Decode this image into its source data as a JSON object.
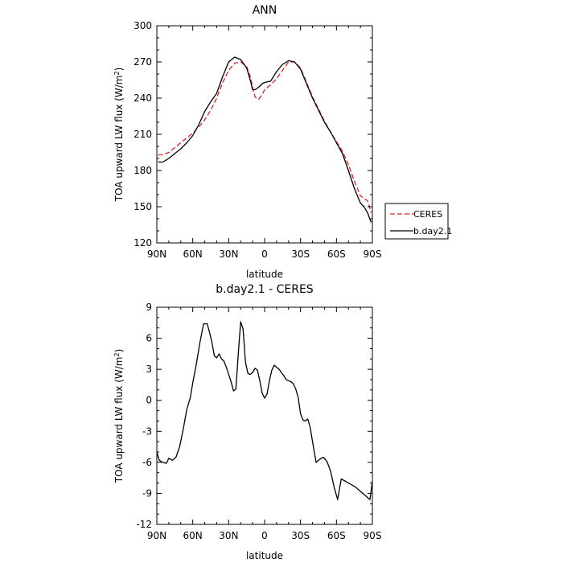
{
  "chart_data": [
    {
      "type": "line",
      "title": "ANN",
      "xlabel": "latitude",
      "ylabel": "TOA upward LW flux (W/m",
      "ylabel_sup": "2",
      "ylabel_tail": ")",
      "xlim": [
        90,
        -90
      ],
      "ylim": [
        120,
        300
      ],
      "x_ticks": [
        90,
        60,
        30,
        0,
        -30,
        -60,
        -90
      ],
      "x_tick_labels": [
        "90N",
        "60N",
        "30N",
        "0",
        "30S",
        "60S",
        "90S"
      ],
      "y_ticks": [
        120,
        150,
        180,
        210,
        240,
        270,
        300
      ],
      "y_tick_labels": [
        "120",
        "150",
        "180",
        "210",
        "240",
        "270",
        "300"
      ],
      "legend": {
        "placement": "outside-right",
        "entries": [
          "CERES",
          "b.day2.1"
        ]
      },
      "series": [
        {
          "name": "CERES",
          "color": "#e02020",
          "dash": "dashed",
          "x": [
            89,
            85,
            80,
            75,
            70,
            65,
            60,
            55,
            50,
            45,
            40,
            35,
            30,
            25,
            20,
            15,
            12,
            10,
            8,
            5,
            2,
            0,
            -5,
            -10,
            -15,
            -20,
            -25,
            -30,
            -35,
            -40,
            -45,
            -50,
            -55,
            -60,
            -65,
            -70,
            -75,
            -80,
            -83,
            -86,
            -89
          ],
          "values": [
            193,
            193,
            195,
            199,
            203,
            207,
            211,
            216,
            222,
            230,
            240,
            253,
            263,
            269,
            270,
            266,
            258,
            249,
            241,
            239,
            243,
            247,
            251,
            256,
            263,
            270,
            270,
            265,
            253,
            241,
            231,
            221,
            212,
            204,
            196,
            185,
            171,
            159,
            157,
            155,
            145
          ]
        },
        {
          "name": "b.day2.1",
          "color": "#000000",
          "dash": "solid",
          "x": [
            89,
            85,
            80,
            75,
            70,
            65,
            60,
            55,
            50,
            45,
            40,
            35,
            30,
            25,
            20,
            15,
            12,
            10,
            8,
            5,
            2,
            0,
            -5,
            -10,
            -15,
            -20,
            -25,
            -30,
            -35,
            -40,
            -45,
            -50,
            -55,
            -60,
            -65,
            -70,
            -75,
            -80,
            -83,
            -86,
            -89
          ],
          "values": [
            187,
            187,
            190,
            194,
            198,
            203,
            209,
            218,
            229,
            237,
            244,
            258,
            270,
            274,
            272,
            265,
            255,
            247,
            247,
            249,
            252,
            253,
            254,
            262,
            268,
            271,
            270,
            264,
            252,
            240,
            230,
            220,
            212,
            203,
            194,
            180,
            165,
            153,
            150,
            145,
            137
          ]
        }
      ]
    },
    {
      "type": "line",
      "title": "b.day2.1 - CERES",
      "xlabel": "latitude",
      "ylabel": "TOA upward LW flux (W/m",
      "ylabel_sup": "2",
      "ylabel_tail": ")",
      "xlim": [
        90,
        -90
      ],
      "ylim": [
        -12,
        9
      ],
      "x_ticks": [
        90,
        60,
        30,
        0,
        -30,
        -60,
        -90
      ],
      "x_tick_labels": [
        "90N",
        "60N",
        "30N",
        "0",
        "30S",
        "60S",
        "90S"
      ],
      "y_ticks": [
        -12,
        -9,
        -6,
        -3,
        0,
        3,
        6,
        9
      ],
      "y_tick_labels": [
        "-12",
        "-9",
        "-6",
        "-3",
        "0",
        "3",
        "6",
        "9"
      ],
      "series": [
        {
          "name": "b.day2.1 - CERES",
          "color": "#000000",
          "dash": "solid",
          "x": [
            90,
            88,
            85,
            82,
            80,
            77,
            74,
            71,
            68,
            65,
            62,
            60,
            57,
            54,
            51,
            48,
            46,
            44,
            42,
            40,
            38,
            36,
            34,
            32,
            30,
            28,
            26,
            24,
            22,
            20,
            18,
            16,
            14,
            12,
            10,
            8,
            6,
            4,
            2,
            0,
            -2,
            -4,
            -6,
            -8,
            -10,
            -12,
            -14,
            -16,
            -18,
            -20,
            -22,
            -24,
            -26,
            -28,
            -30,
            -32,
            -34,
            -36,
            -38,
            -40,
            -43,
            -46,
            -49,
            -52,
            -55,
            -58,
            -61,
            -64,
            -67,
            -70,
            -73,
            -76,
            -78,
            -80,
            -82,
            -84,
            -86,
            -88,
            -90
          ],
          "values": [
            -5.0,
            -5.8,
            -6.0,
            -6.1,
            -5.6,
            -5.8,
            -5.5,
            -4.5,
            -2.8,
            -0.9,
            0.3,
            1.7,
            3.5,
            5.6,
            7.4,
            7.4,
            6.6,
            5.6,
            4.3,
            4.1,
            4.5,
            4.0,
            3.8,
            3.2,
            2.5,
            1.8,
            0.9,
            1.1,
            4.4,
            7.6,
            6.9,
            3.7,
            2.6,
            2.5,
            2.7,
            3.1,
            2.9,
            1.9,
            0.7,
            0.2,
            0.6,
            1.9,
            2.9,
            3.4,
            3.2,
            3.0,
            2.7,
            2.4,
            2.0,
            1.9,
            1.8,
            1.6,
            1.1,
            0.3,
            -1.3,
            -1.9,
            -2.0,
            -1.8,
            -2.6,
            -4.0,
            -6.0,
            -5.7,
            -5.5,
            -5.9,
            -6.8,
            -8.4,
            -9.6,
            -7.6,
            -7.8,
            -8.0,
            -8.2,
            -8.4,
            -8.6,
            -8.8,
            -9.0,
            -9.2,
            -9.4,
            -9.6,
            -7.8
          ]
        }
      ]
    }
  ]
}
